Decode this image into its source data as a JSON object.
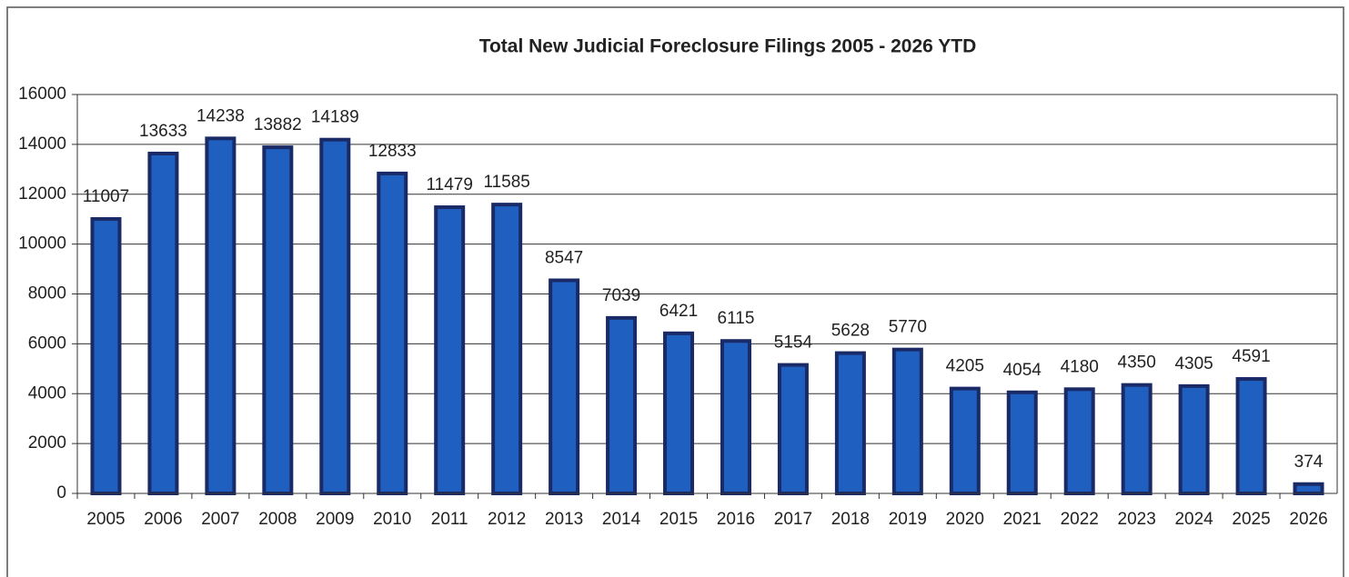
{
  "chart_data": {
    "type": "bar",
    "title": "Total New Judicial Foreclosure Filings 2005 - 2026 YTD",
    "categories": [
      "2005",
      "2006",
      "2007",
      "2008",
      "2009",
      "2010",
      "2011",
      "2012",
      "2013",
      "2014",
      "2015",
      "2016",
      "2017",
      "2018",
      "2019",
      "2020",
      "2021",
      "2022",
      "2023",
      "2024",
      "2025",
      "2026"
    ],
    "values": [
      11007,
      13633,
      14238,
      13882,
      14189,
      12833,
      11479,
      11585,
      8547,
      7039,
      6421,
      6115,
      5154,
      5628,
      5770,
      4205,
      4054,
      4180,
      4350,
      4305,
      4591,
      374
    ],
    "color": "#1f5fbf",
    "ylim": [
      0,
      16000
    ],
    "yticks": [
      0,
      2000,
      4000,
      6000,
      8000,
      10000,
      12000,
      14000,
      16000
    ],
    "grid": true
  }
}
